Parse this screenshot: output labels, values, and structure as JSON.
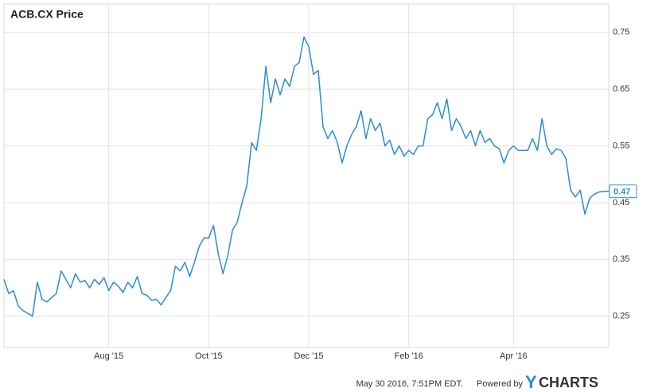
{
  "chart_data": {
    "type": "line",
    "title": "ACB.CX Price",
    "categories": [
      null,
      null,
      null,
      null,
      null,
      null,
      null,
      null,
      null,
      null,
      null,
      null,
      null,
      null,
      null,
      null,
      null,
      null,
      null,
      null,
      null,
      null,
      "Aug '15",
      null,
      null,
      null,
      null,
      null,
      null,
      null,
      null,
      null,
      null,
      null,
      null,
      null,
      null,
      null,
      null,
      null,
      null,
      null,
      null,
      "Oct '15",
      null,
      null,
      null,
      null,
      null,
      null,
      null,
      null,
      null,
      null,
      null,
      null,
      null,
      null,
      null,
      null,
      null,
      null,
      null,
      null,
      "Dec '15",
      null,
      null,
      null,
      null,
      null,
      null,
      null,
      null,
      null,
      null,
      null,
      null,
      null,
      null,
      null,
      null,
      null,
      null,
      null,
      null,
      "Feb '16",
      null,
      null,
      null,
      null,
      null,
      null,
      null,
      null,
      null,
      null,
      null,
      null,
      null,
      null,
      null,
      null,
      null,
      null,
      null,
      null,
      null,
      "Apr '16",
      null,
      null,
      null,
      null,
      null,
      null,
      null,
      null,
      null,
      null,
      null,
      null,
      null,
      null,
      null,
      null,
      null,
      null,
      null,
      null
    ],
    "series": [
      {
        "name": "ACB.CX Price",
        "color": "#2c8dd0",
        "values": [
          0.315,
          0.29,
          0.295,
          0.268,
          0.26,
          0.255,
          0.25,
          0.31,
          0.28,
          0.275,
          0.283,
          0.29,
          0.33,
          0.315,
          0.3,
          0.325,
          0.31,
          0.313,
          0.3,
          0.315,
          0.306,
          0.318,
          0.295,
          0.31,
          0.303,
          0.292,
          0.31,
          0.3,
          0.32,
          0.29,
          0.287,
          0.278,
          0.28,
          0.27,
          0.283,
          0.295,
          0.338,
          0.33,
          0.345,
          0.32,
          0.345,
          0.373,
          0.388,
          0.388,
          0.41,
          0.36,
          0.325,
          0.357,
          0.402,
          0.416,
          0.45,
          0.48,
          0.556,
          0.542,
          0.598,
          0.69,
          0.626,
          0.668,
          0.64,
          0.668,
          0.655,
          0.69,
          0.697,
          0.742,
          0.725,
          0.676,
          0.683,
          0.584,
          0.563,
          0.577,
          0.556,
          0.52,
          0.55,
          0.57,
          0.584,
          0.612,
          0.563,
          0.598,
          0.577,
          0.59,
          0.55,
          0.56,
          0.535,
          0.55,
          0.532,
          0.542,
          0.535,
          0.55,
          0.55,
          0.598,
          0.605,
          0.626,
          0.598,
          0.633,
          0.577,
          0.598,
          0.584,
          0.563,
          0.577,
          0.55,
          0.577,
          0.556,
          0.563,
          0.55,
          0.545,
          0.52,
          0.542,
          0.55,
          0.542,
          0.542,
          0.542,
          0.563,
          0.542,
          0.598,
          0.55,
          0.535,
          0.545,
          0.542,
          0.528,
          0.472,
          0.46,
          0.472,
          0.43,
          0.458,
          0.465,
          0.469,
          0.47,
          0.47
        ]
      }
    ],
    "ylim": [
      0.195,
      0.8
    ],
    "yticks": [
      0.25,
      0.35,
      0.45,
      0.55,
      0.65,
      0.75
    ],
    "grid": true
  },
  "footer": {
    "timestamp": "May 30 2016, 7:51PM EDT.",
    "powered_by": "Powered by",
    "brand_y": "Y",
    "brand_rest": "CHARTS"
  }
}
